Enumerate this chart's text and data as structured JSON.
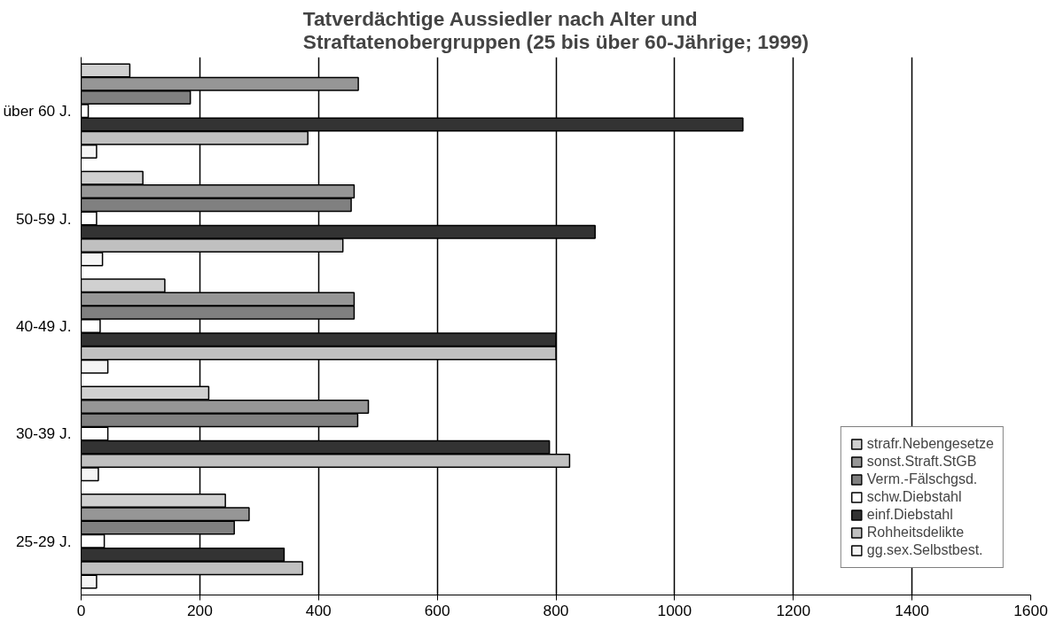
{
  "chart_data": {
    "type": "bar",
    "orientation": "horizontal",
    "title": "Tatverdächtige Aussiedler nach Alter und Straftatenobergruppen (25 bis über 60-Jährige; 1999)",
    "categories": [
      "über 60 J.",
      "50-59 J.",
      "40-49 J.",
      "30-39 J.",
      "25-29 J."
    ],
    "series": [
      {
        "name": "strafr.Nebengesetze",
        "color": "#d0d0d0",
        "values": [
          82,
          104,
          141,
          215,
          243
        ]
      },
      {
        "name": "sonst.Straft.StGB",
        "color": "#969696",
        "values": [
          467,
          460,
          460,
          484,
          283
        ]
      },
      {
        "name": "Verm.-Fälschgsd.",
        "color": "#808080",
        "values": [
          184,
          455,
          460,
          466,
          258
        ]
      },
      {
        "name": "schw.Diebstahl",
        "color": "#ffffff",
        "values": [
          12,
          26,
          32,
          45,
          39
        ]
      },
      {
        "name": "einf.Diebstahl",
        "color": "#333333",
        "values": [
          1115,
          866,
          800,
          789,
          342
        ]
      },
      {
        "name": "Rohheitsdelikte",
        "color": "#c0c0c0",
        "values": [
          382,
          441,
          800,
          823,
          373
        ]
      },
      {
        "name": "gg.sex.Selbstbest.",
        "color": "#f5f5f5",
        "values": [
          26,
          36,
          45,
          29,
          26
        ]
      }
    ],
    "xlim": [
      0,
      1600
    ],
    "xticks": [
      0,
      200,
      400,
      600,
      800,
      1000,
      1200,
      1400,
      1600
    ],
    "grid": "x",
    "legend": "bottom right"
  }
}
